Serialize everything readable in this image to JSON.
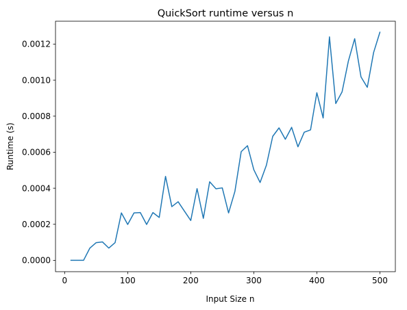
{
  "chart_data": {
    "type": "line",
    "title": "QuickSort runtime versus n",
    "xlabel": "Input Size n",
    "ylabel": "Runtime (s)",
    "xlim": [
      -14.5,
      524.5
    ],
    "ylim": [
      -6.3e-05,
      0.001327
    ],
    "x_ticks": [
      0,
      100,
      200,
      300,
      400,
      500
    ],
    "x_tick_labels": [
      "0",
      "100",
      "200",
      "300",
      "400",
      "500"
    ],
    "y_ticks": [
      0.0,
      0.0002,
      0.0004,
      0.0006,
      0.0008,
      0.001,
      0.0012
    ],
    "y_tick_labels": [
      "0.0000",
      "0.0002",
      "0.0004",
      "0.0006",
      "0.0008",
      "0.0010",
      "0.0012"
    ],
    "grid": false,
    "legend": "none",
    "line_color": "#1f77b4",
    "series": [
      {
        "x": [
          10,
          20,
          30,
          40,
          50,
          60,
          70,
          80,
          90,
          100,
          110,
          120,
          130,
          140,
          150,
          160,
          170,
          180,
          190,
          200,
          210,
          220,
          230,
          240,
          250,
          260,
          270,
          280,
          290,
          300,
          310,
          320,
          330,
          340,
          350,
          360,
          370,
          380,
          390,
          400,
          410,
          420,
          430,
          440,
          450,
          460,
          470,
          480,
          490,
          500
        ],
        "y": [
          0.0,
          0.0,
          0.0,
          6.8e-05,
          9.8e-05,
          0.000102,
          6.8e-05,
          9.8e-05,
          0.000263,
          0.000199,
          0.000263,
          0.000265,
          0.000199,
          0.000265,
          0.000238,
          0.000466,
          0.000298,
          0.000325,
          0.000273,
          0.000221,
          0.000398,
          0.000233,
          0.000436,
          0.000397,
          0.000402,
          0.000263,
          0.000382,
          0.000603,
          0.000636,
          0.000503,
          0.000432,
          0.000528,
          0.000688,
          0.000735,
          0.000672,
          0.000738,
          0.00063,
          0.000711,
          0.000724,
          0.00093,
          0.00079,
          0.00124,
          0.00087,
          0.000935,
          0.001106,
          0.00123,
          0.001018,
          0.00096,
          0.001153,
          0.001266
        ]
      }
    ]
  }
}
